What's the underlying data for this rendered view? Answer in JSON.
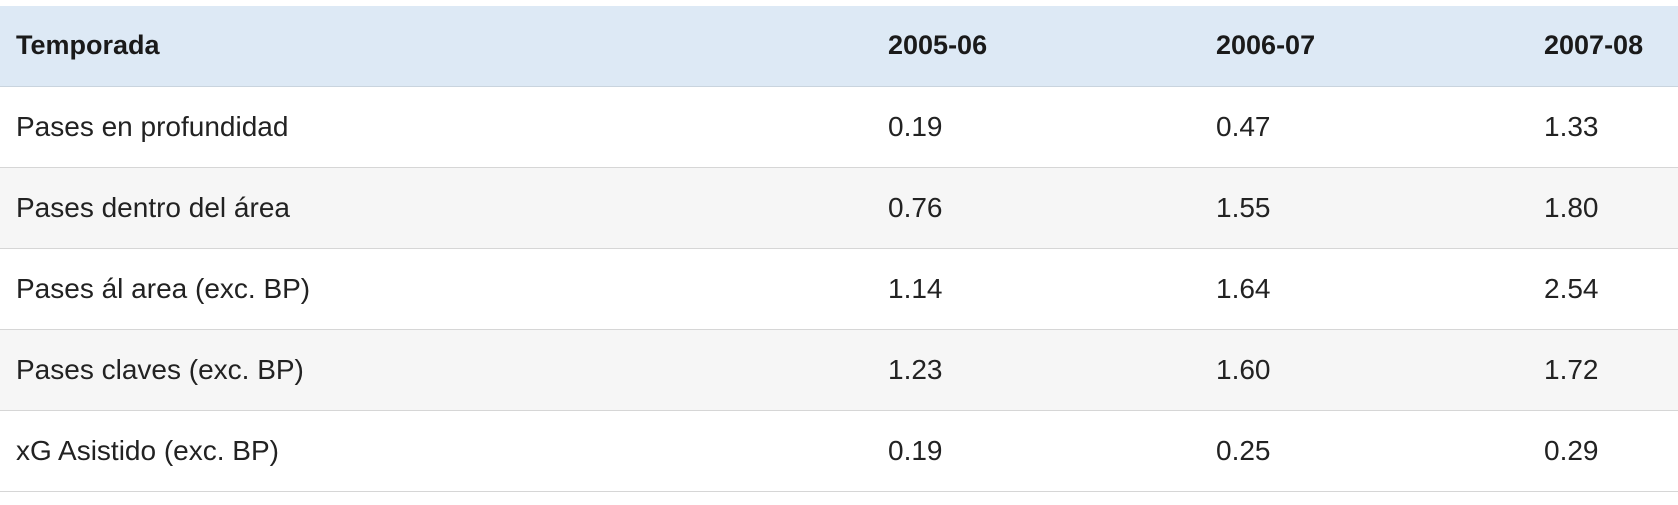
{
  "table": {
    "headers": [
      "Temporada",
      "2005-06",
      "2006-07",
      "2007-08"
    ],
    "rows": [
      [
        "Pases en profundidad",
        "0.19",
        "0.47",
        "1.33"
      ],
      [
        "Pases dentro del área",
        "0.76",
        "1.55",
        "1.80"
      ],
      [
        "Pases ál area (exc. BP)",
        "1.14",
        "1.64",
        "2.54"
      ],
      [
        "Pases claves (exc. BP)",
        "1.23",
        "1.60",
        "1.72"
      ],
      [
        "xG Asistido (exc. BP)",
        "0.19",
        "0.25",
        "0.29"
      ]
    ]
  },
  "colors": {
    "header_background": "#dde9f5",
    "row_alt_background": "#f6f6f6",
    "row_background": "#ffffff",
    "divider": "#d6d6d6"
  }
}
